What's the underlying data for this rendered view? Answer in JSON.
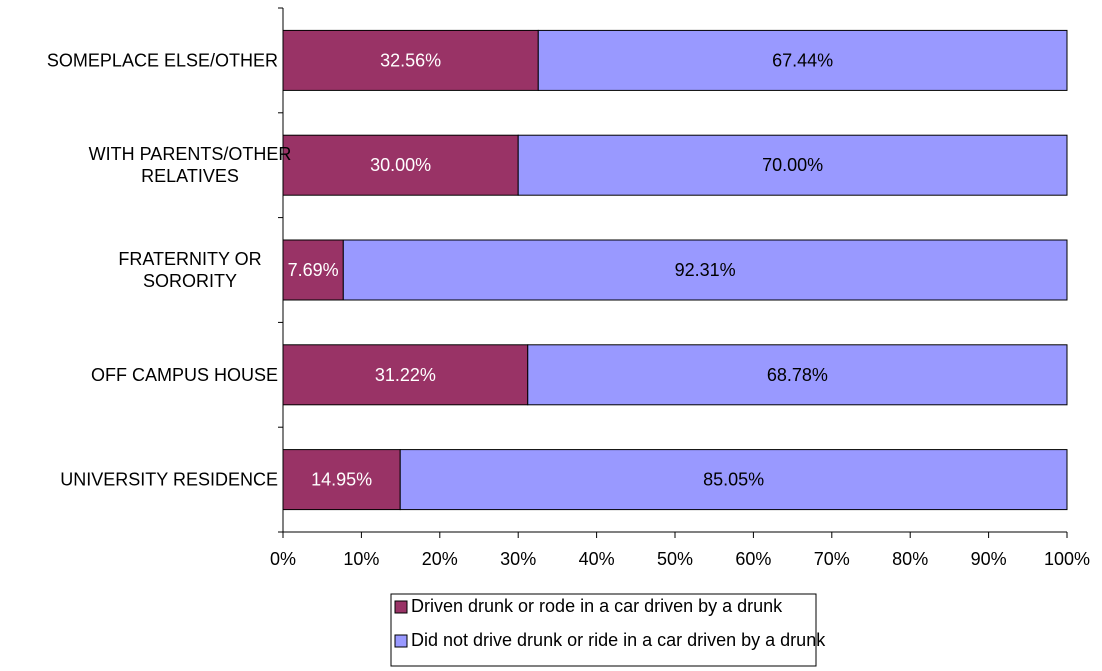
{
  "chart_data": {
    "type": "bar",
    "orientation": "horizontal",
    "stacked": true,
    "categories": [
      "SOMEPLACE ELSE/OTHER",
      "WITH PARENTS/OTHER RELATIVES",
      "FRATERNITY OR SORORITY",
      "OFF CAMPUS HOUSE",
      "UNIVERSITY RESIDENCE"
    ],
    "category_lines": [
      [
        "SOMEPLACE ELSE/OTHER"
      ],
      [
        "WITH PARENTS/OTHER",
        "RELATIVES"
      ],
      [
        "FRATERNITY OR",
        "SORORITY"
      ],
      [
        "OFF CAMPUS HOUSE"
      ],
      [
        "UNIVERSITY RESIDENCE"
      ]
    ],
    "series": [
      {
        "name": "Driven drunk or rode in a car driven by a drunk",
        "color": "#993366",
        "label_color": "#ffffff",
        "values": [
          32.56,
          30.0,
          7.69,
          31.22,
          14.95
        ],
        "labels": [
          "32.56%",
          "30.00%",
          "7.69%",
          "31.22%",
          "14.95%"
        ]
      },
      {
        "name": "Did not drive drunk or ride in a car driven by a drunk",
        "color": "#9999ff",
        "label_color": "#000000",
        "values": [
          67.44,
          70.0,
          92.31,
          68.78,
          85.05
        ],
        "labels": [
          "67.44%",
          "70.00%",
          "92.31%",
          "68.78%",
          "85.05%"
        ]
      }
    ],
    "x_ticks": [
      "0%",
      "10%",
      "20%",
      "30%",
      "40%",
      "50%",
      "60%",
      "70%",
      "80%",
      "90%",
      "100%"
    ],
    "xlim": [
      0,
      100
    ],
    "title": "",
    "xlabel": "",
    "ylabel": "",
    "grid": false,
    "legend_position": "bottom"
  }
}
